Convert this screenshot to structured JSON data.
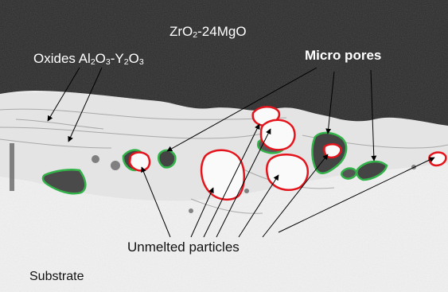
{
  "labels": {
    "coating": [
      "ZrO",
      "2",
      "-24MgO"
    ],
    "oxides": [
      "Oxides Al",
      "2",
      "O",
      "3",
      "-Y",
      "2",
      "O",
      "3"
    ],
    "micro_pores": "Micro pores",
    "unmelted_particles": "Unmelted particles",
    "substrate": "Substrate"
  },
  "colors": {
    "coating_dark": "#2b2b2b",
    "interface_light": "#e9e9e9",
    "substrate_light": "#f2f2f2",
    "unmelted_outline": "#e3141c",
    "pore_outline": "#33b24a",
    "arrow": "#000000",
    "label_on_dark": "#ffffff",
    "label_on_light": "#111111"
  }
}
